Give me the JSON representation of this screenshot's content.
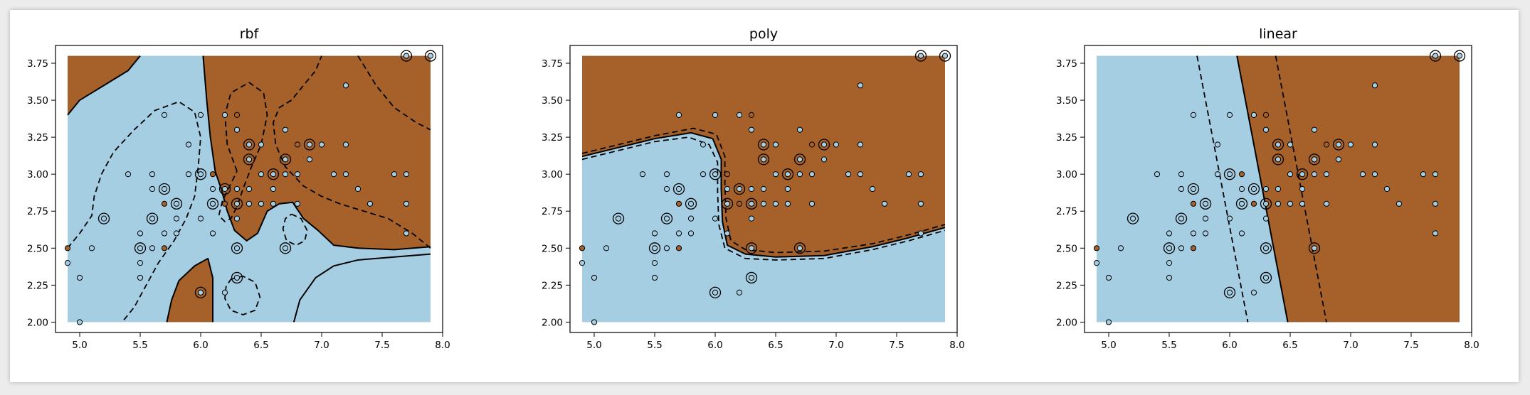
{
  "colors": {
    "blue_region": "#a6cee3",
    "brown_region": "#a6612a",
    "blue_point": "#a6cee3",
    "brown_point": "#a6612a"
  },
  "chart_data": [
    {
      "type": "scatter",
      "title": "rbf",
      "xlim": [
        4.8,
        8.0
      ],
      "ylim": [
        1.93,
        3.87
      ],
      "xticks": [
        "5.0",
        "5.5",
        "6.0",
        "6.5",
        "7.0",
        "7.5",
        "8.0"
      ],
      "yticks": [
        "2.00",
        "2.25",
        "2.50",
        "2.75",
        "3.00",
        "3.25",
        "3.50",
        "3.75"
      ],
      "region": {
        "x_range": [
          4.9,
          7.9
        ],
        "y_range": [
          2.0,
          3.8
        ],
        "brown_areas": [
          [
            [
              4.9,
              3.4
            ],
            [
              5.0,
              3.5
            ],
            [
              5.2,
              3.6
            ],
            [
              5.4,
              3.7
            ],
            [
              5.5,
              3.8
            ],
            [
              4.9,
              3.8
            ]
          ],
          [
            [
              6.02,
              3.8
            ],
            [
              6.05,
              3.5
            ],
            [
              6.08,
              3.25
            ],
            [
              6.12,
              3.02
            ],
            [
              6.17,
              2.9
            ],
            [
              6.22,
              2.75
            ],
            [
              6.28,
              2.62
            ],
            [
              6.38,
              2.55
            ],
            [
              6.47,
              2.6
            ],
            [
              6.55,
              2.75
            ],
            [
              6.65,
              2.8
            ],
            [
              6.76,
              2.81
            ],
            [
              6.85,
              2.7
            ],
            [
              6.97,
              2.62
            ],
            [
              7.1,
              2.52
            ],
            [
              7.3,
              2.5
            ],
            [
              7.6,
              2.49
            ],
            [
              7.9,
              2.51
            ],
            [
              7.9,
              3.8
            ]
          ],
          [
            [
              5.72,
              2.0
            ],
            [
              5.76,
              2.15
            ],
            [
              5.82,
              2.28
            ],
            [
              5.95,
              2.38
            ],
            [
              6.06,
              2.43
            ],
            [
              6.1,
              2.3
            ],
            [
              6.1,
              2.0
            ]
          ]
        ]
      },
      "points": [
        {
          "x": 7.7,
          "y": 3.8,
          "class": "blue",
          "sv": true
        },
        {
          "x": 7.9,
          "y": 3.8,
          "class": "blue",
          "sv": true
        },
        {
          "x": 7.2,
          "y": 3.6,
          "class": "blue",
          "sv": false
        },
        {
          "x": 5.7,
          "y": 3.4,
          "class": "blue",
          "sv": false
        },
        {
          "x": 6.0,
          "y": 3.4,
          "class": "blue",
          "sv": false
        },
        {
          "x": 6.3,
          "y": 3.4,
          "class": "brown",
          "sv": false
        },
        {
          "x": 6.2,
          "y": 3.4,
          "class": "blue",
          "sv": false
        },
        {
          "x": 6.3,
          "y": 3.3,
          "class": "blue",
          "sv": false
        },
        {
          "x": 6.7,
          "y": 3.3,
          "class": "blue",
          "sv": false
        },
        {
          "x": 6.4,
          "y": 3.2,
          "class": "blue",
          "sv": true
        },
        {
          "x": 6.9,
          "y": 3.2,
          "class": "blue",
          "sv": true
        },
        {
          "x": 6.5,
          "y": 3.2,
          "class": "blue",
          "sv": false
        },
        {
          "x": 6.8,
          "y": 3.2,
          "class": "brown",
          "sv": false
        },
        {
          "x": 7.0,
          "y": 3.2,
          "class": "blue",
          "sv": false
        },
        {
          "x": 7.2,
          "y": 3.2,
          "class": "blue",
          "sv": false
        },
        {
          "x": 5.9,
          "y": 3.2,
          "class": "blue",
          "sv": false
        },
        {
          "x": 6.4,
          "y": 3.1,
          "class": "blue",
          "sv": true
        },
        {
          "x": 6.7,
          "y": 3.1,
          "class": "blue",
          "sv": true
        },
        {
          "x": 6.9,
          "y": 3.1,
          "class": "blue",
          "sv": false
        },
        {
          "x": 5.4,
          "y": 3.0,
          "class": "blue",
          "sv": false
        },
        {
          "x": 5.6,
          "y": 3.0,
          "class": "blue",
          "sv": false
        },
        {
          "x": 5.9,
          "y": 3.0,
          "class": "blue",
          "sv": false
        },
        {
          "x": 6.0,
          "y": 3.0,
          "class": "blue",
          "sv": true
        },
        {
          "x": 6.1,
          "y": 3.0,
          "class": "brown",
          "sv": false
        },
        {
          "x": 6.5,
          "y": 3.0,
          "class": "blue",
          "sv": false
        },
        {
          "x": 6.6,
          "y": 3.0,
          "class": "blue",
          "sv": true
        },
        {
          "x": 6.7,
          "y": 3.0,
          "class": "blue",
          "sv": false
        },
        {
          "x": 6.8,
          "y": 3.0,
          "class": "blue",
          "sv": false
        },
        {
          "x": 7.1,
          "y": 3.0,
          "class": "blue",
          "sv": false
        },
        {
          "x": 7.2,
          "y": 3.0,
          "class": "blue",
          "sv": false
        },
        {
          "x": 7.6,
          "y": 3.0,
          "class": "blue",
          "sv": false
        },
        {
          "x": 7.7,
          "y": 3.0,
          "class": "blue",
          "sv": false
        },
        {
          "x": 5.7,
          "y": 2.9,
          "class": "blue",
          "sv": true
        },
        {
          "x": 6.2,
          "y": 2.9,
          "class": "blue",
          "sv": true
        },
        {
          "x": 6.1,
          "y": 2.9,
          "class": "blue",
          "sv": false
        },
        {
          "x": 6.4,
          "y": 2.9,
          "class": "blue",
          "sv": false
        },
        {
          "x": 6.6,
          "y": 2.9,
          "class": "blue",
          "sv": false
        },
        {
          "x": 6.3,
          "y": 2.9,
          "class": "blue",
          "sv": false
        },
        {
          "x": 7.3,
          "y": 2.9,
          "class": "blue",
          "sv": false
        },
        {
          "x": 5.6,
          "y": 2.9,
          "class": "blue",
          "sv": false
        },
        {
          "x": 5.8,
          "y": 2.8,
          "class": "blue",
          "sv": true
        },
        {
          "x": 6.1,
          "y": 2.8,
          "class": "blue",
          "sv": true
        },
        {
          "x": 6.3,
          "y": 2.8,
          "class": "blue",
          "sv": true
        },
        {
          "x": 5.7,
          "y": 2.8,
          "class": "brown",
          "sv": false
        },
        {
          "x": 6.2,
          "y": 2.8,
          "class": "brown",
          "sv": false
        },
        {
          "x": 6.4,
          "y": 2.8,
          "class": "blue",
          "sv": false
        },
        {
          "x": 6.5,
          "y": 2.8,
          "class": "blue",
          "sv": false
        },
        {
          "x": 6.8,
          "y": 2.8,
          "class": "blue",
          "sv": false
        },
        {
          "x": 7.4,
          "y": 2.8,
          "class": "blue",
          "sv": false
        },
        {
          "x": 7.7,
          "y": 2.8,
          "class": "blue",
          "sv": false
        },
        {
          "x": 6.6,
          "y": 2.8,
          "class": "blue",
          "sv": false
        },
        {
          "x": 5.2,
          "y": 2.7,
          "class": "blue",
          "sv": true
        },
        {
          "x": 5.6,
          "y": 2.7,
          "class": "blue",
          "sv": true
        },
        {
          "x": 5.8,
          "y": 2.7,
          "class": "blue",
          "sv": false
        },
        {
          "x": 6.0,
          "y": 2.7,
          "class": "blue",
          "sv": false
        },
        {
          "x": 6.3,
          "y": 2.7,
          "class": "blue",
          "sv": false
        },
        {
          "x": 5.5,
          "y": 2.6,
          "class": "blue",
          "sv": false
        },
        {
          "x": 5.7,
          "y": 2.6,
          "class": "blue",
          "sv": false
        },
        {
          "x": 5.8,
          "y": 2.6,
          "class": "blue",
          "sv": false
        },
        {
          "x": 6.1,
          "y": 2.6,
          "class": "blue",
          "sv": false
        },
        {
          "x": 7.7,
          "y": 2.6,
          "class": "blue",
          "sv": false
        },
        {
          "x": 4.9,
          "y": 2.5,
          "class": "brown",
          "sv": false
        },
        {
          "x": 5.1,
          "y": 2.5,
          "class": "blue",
          "sv": false
        },
        {
          "x": 5.5,
          "y": 2.5,
          "class": "blue",
          "sv": true
        },
        {
          "x": 5.6,
          "y": 2.5,
          "class": "blue",
          "sv": false
        },
        {
          "x": 5.7,
          "y": 2.5,
          "class": "brown",
          "sv": false
        },
        {
          "x": 6.3,
          "y": 2.5,
          "class": "blue",
          "sv": true
        },
        {
          "x": 6.7,
          "y": 2.5,
          "class": "blue",
          "sv": true
        },
        {
          "x": 5.5,
          "y": 2.4,
          "class": "blue",
          "sv": false
        },
        {
          "x": 4.9,
          "y": 2.4,
          "class": "blue",
          "sv": false
        },
        {
          "x": 5.5,
          "y": 2.3,
          "class": "blue",
          "sv": false
        },
        {
          "x": 5.0,
          "y": 2.3,
          "class": "blue",
          "sv": false
        },
        {
          "x": 6.3,
          "y": 2.3,
          "class": "blue",
          "sv": true
        },
        {
          "x": 6.2,
          "y": 2.2,
          "class": "blue",
          "sv": false
        },
        {
          "x": 6.0,
          "y": 2.2,
          "class": "blue",
          "sv": true
        },
        {
          "x": 5.0,
          "y": 2.0,
          "class": "blue",
          "sv": false
        }
      ]
    },
    {
      "type": "scatter",
      "title": "poly",
      "xlim": [
        4.8,
        8.0
      ],
      "ylim": [
        1.93,
        3.87
      ],
      "xticks": [
        "5.0",
        "5.5",
        "6.0",
        "6.5",
        "7.0",
        "7.5",
        "8.0"
      ],
      "yticks": [
        "2.00",
        "2.25",
        "2.50",
        "2.75",
        "3.00",
        "3.25",
        "3.50",
        "3.75"
      ],
      "region": {
        "x_range": [
          4.9,
          7.9
        ],
        "y_range": [
          2.0,
          3.8
        ],
        "brown_areas": [
          [
            [
              4.9,
              3.12
            ],
            [
              5.2,
              3.18
            ],
            [
              5.5,
              3.24
            ],
            [
              5.8,
              3.28
            ],
            [
              5.98,
              3.24
            ],
            [
              6.05,
              3.1
            ],
            [
              6.05,
              2.9
            ],
            [
              6.06,
              2.68
            ],
            [
              6.1,
              2.52
            ],
            [
              6.25,
              2.46
            ],
            [
              6.5,
              2.44
            ],
            [
              6.9,
              2.45
            ],
            [
              7.3,
              2.51
            ],
            [
              7.6,
              2.57
            ],
            [
              7.9,
              2.64
            ],
            [
              7.9,
              3.8
            ],
            [
              4.9,
              3.8
            ]
          ]
        ]
      },
      "points_ref": 0
    },
    {
      "type": "scatter",
      "title": "linear",
      "xlim": [
        4.8,
        8.0
      ],
      "ylim": [
        1.93,
        3.87
      ],
      "xticks": [
        "5.0",
        "5.5",
        "6.0",
        "6.5",
        "7.0",
        "7.5",
        "8.0"
      ],
      "yticks": [
        "2.00",
        "2.25",
        "2.50",
        "2.75",
        "3.00",
        "3.25",
        "3.50",
        "3.75"
      ],
      "region": {
        "x_range": [
          4.9,
          7.9
        ],
        "y_range": [
          2.0,
          3.8
        ],
        "brown_areas": [
          [
            [
              6.06,
              3.8
            ],
            [
              6.48,
              2.0
            ],
            [
              7.9,
              2.0
            ],
            [
              7.9,
              3.8
            ]
          ]
        ]
      },
      "points_ref": 0
    }
  ]
}
